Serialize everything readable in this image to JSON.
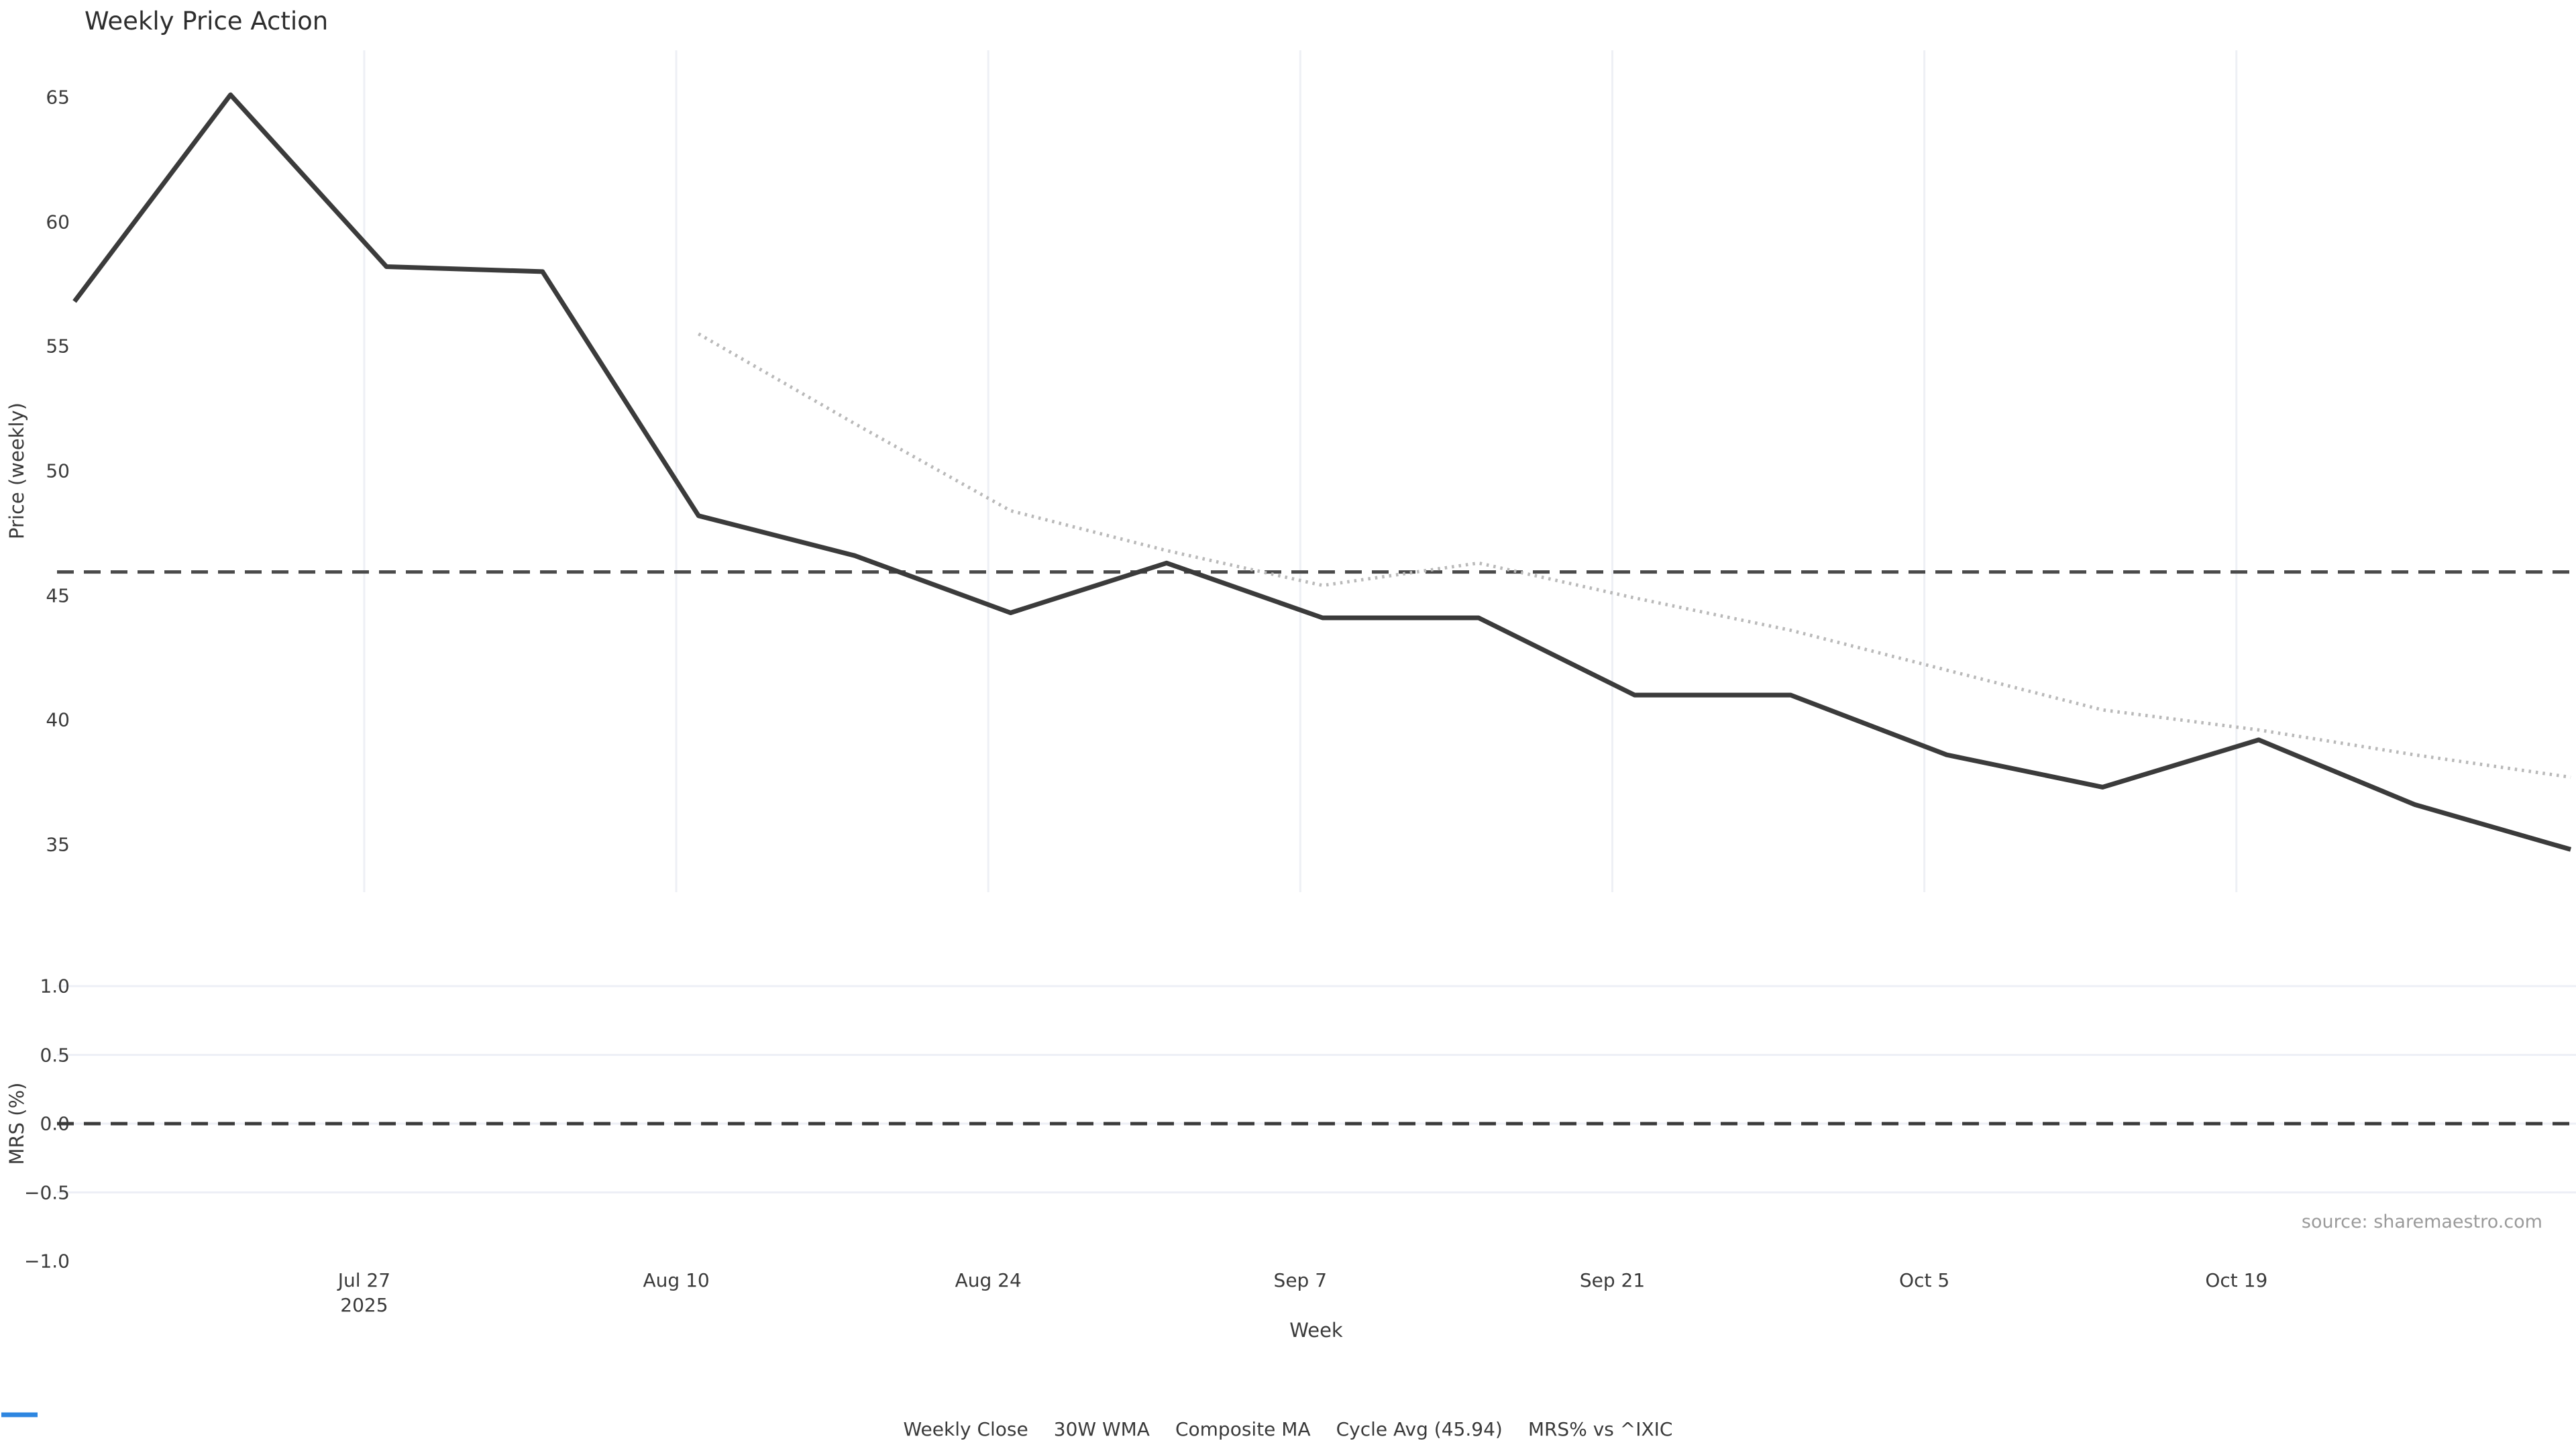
{
  "figure": {
    "title": "Weekly Price Action",
    "xlabel": "Week",
    "source": "source: sharemaestro.com"
  },
  "price_panel": {
    "ylabel": "Price (weekly)",
    "ytick_labels": [
      "65",
      "60",
      "55",
      "50",
      "45",
      "40",
      "35"
    ]
  },
  "mrs_panel": {
    "ylabel": "MRS (%)",
    "ytick_labels": [
      "1.0",
      "0.5",
      "0.0",
      "−0.5",
      "−1.0"
    ]
  },
  "xaxis": {
    "tick_labels": [
      "Jul 27",
      "Aug 10",
      "Aug 24",
      "Sep 7",
      "Sep 21",
      "Oct 5",
      "Oct 19"
    ],
    "year_label": "2025"
  },
  "legend": {
    "items": [
      {
        "label": "Weekly Close",
        "style": "solid",
        "color": "#3b3b3b"
      },
      {
        "label": "30W WMA",
        "style": "solid",
        "color": "#d6a51f"
      },
      {
        "label": "Composite MA",
        "style": "dotted",
        "color": "#b9b9b9"
      },
      {
        "label": "Cycle Avg (45.94)",
        "style": "dashed",
        "color": "#4a4a4a"
      },
      {
        "label": "MRS% vs ^IXIC",
        "style": "solid",
        "color": "#2e86e0"
      }
    ]
  },
  "colors": {
    "weekly_close": "#3b3b3b",
    "wma_30w": "#d6a51f",
    "composite_ma": "#b9b9b9",
    "cycle_avg": "#4a4a4a",
    "mrs_line": "#2e86e0",
    "zero_line": "#3a3a3a",
    "grid_vertical": "#eef0f5",
    "grid_horizontal": "#edeff6",
    "text": "#3a3a3a",
    "muted_text": "#9a9a9a"
  },
  "chart_data": [
    {
      "type": "line",
      "panel": "price",
      "title": "Weekly Price Action",
      "ylabel": "Price (weekly)",
      "xlabel": "Week",
      "x": [
        "2025-07-14",
        "2025-07-21",
        "2025-07-28",
        "2025-08-04",
        "2025-08-11",
        "2025-08-18",
        "2025-08-25",
        "2025-09-01",
        "2025-09-08",
        "2025-09-15",
        "2025-09-22",
        "2025-09-29",
        "2025-10-06",
        "2025-10-13",
        "2025-10-20",
        "2025-10-27",
        "2025-11-03"
      ],
      "series": [
        {
          "name": "Weekly Close",
          "style": "solid",
          "color": "#3b3b3b",
          "values": [
            56.8,
            65.1,
            58.2,
            58.0,
            48.2,
            46.6,
            44.3,
            46.3,
            44.1,
            44.1,
            41.0,
            41.0,
            38.6,
            37.3,
            39.2,
            36.6,
            34.8
          ]
        },
        {
          "name": "30W WMA",
          "style": "solid",
          "color": "#d6a51f",
          "values": []
        },
        {
          "name": "Composite MA",
          "style": "dotted",
          "color": "#b9b9b9",
          "values": [
            null,
            null,
            null,
            null,
            55.5,
            51.9,
            48.4,
            46.8,
            45.4,
            46.3,
            44.9,
            43.6,
            42.0,
            40.4,
            39.6,
            38.6,
            37.7
          ]
        }
      ],
      "reference_lines": [
        {
          "name": "Cycle Avg",
          "value": 45.94,
          "style": "dashed",
          "color": "#4a4a4a"
        }
      ],
      "yticks": [
        65,
        60,
        55,
        50,
        45,
        40,
        35
      ],
      "ylim": [
        33.1,
        66.9
      ],
      "xtick_labels": [
        "Jul 27\n2025",
        "Aug 10",
        "Aug 24",
        "Sep 7",
        "Sep 21",
        "Oct 5",
        "Oct 19"
      ],
      "grid": "vertical",
      "legend_position": "bottom"
    },
    {
      "type": "line",
      "panel": "mrs",
      "ylabel": "MRS (%)",
      "series": [
        {
          "name": "MRS% vs ^IXIC",
          "style": "solid",
          "color": "#2e86e0",
          "values": []
        }
      ],
      "reference_lines": [
        {
          "name": "zero",
          "value": 0.0,
          "style": "dashed",
          "color": "#3a3a3a"
        }
      ],
      "yticks": [
        1.0,
        0.5,
        0.0,
        -0.5,
        -1.0
      ],
      "gridline_yticks": [
        1.0,
        0.5,
        0.0,
        -0.5
      ],
      "ylim": [
        -1.1,
        1.1
      ],
      "grid": "horizontal"
    }
  ]
}
